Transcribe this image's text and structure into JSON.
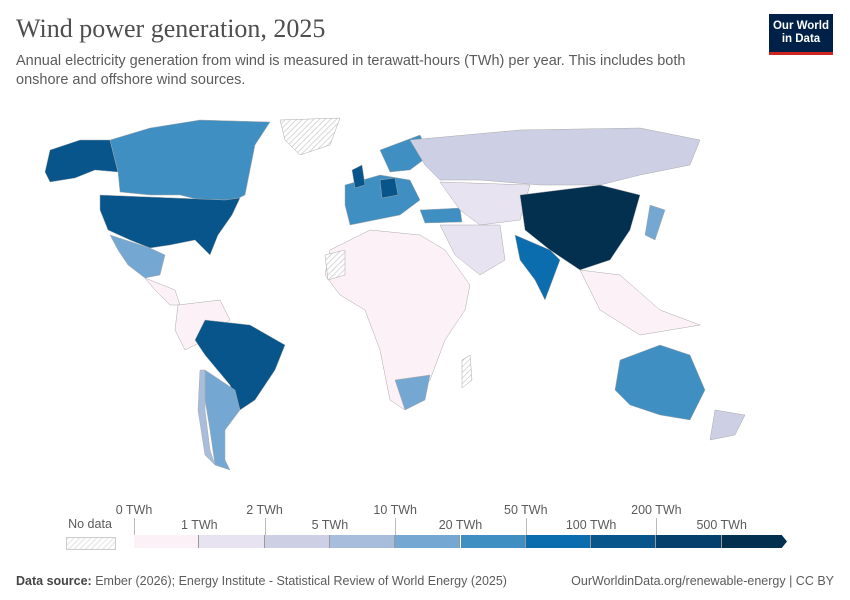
{
  "header": {
    "title": "Wind power generation, 2025",
    "subtitle": "Annual electricity generation from wind is measured in terawatt-hours (TWh) per year. This includes both onshore and offshore wind sources.",
    "logo": "Our World in Data"
  },
  "legend": {
    "no_data": "No data",
    "upper_labels": [
      "0 TWh",
      "2 TWh",
      "10 TWh",
      "50 TWh",
      "200 TWh"
    ],
    "lower_labels": [
      "1 TWh",
      "5 TWh",
      "20 TWh",
      "100 TWh",
      "500 TWh"
    ],
    "bins": [
      "#fdf1f8",
      "#e8e3f1",
      "#cdcfe4",
      "#a8bcdb",
      "#74a7d2",
      "#3f8fc2",
      "#0b6cae",
      "#07558b",
      "#053f6b",
      "#043050"
    ]
  },
  "footer": {
    "source_label": "Data source:",
    "source": "Ember (2026); Energy Institute - Statistical Review of World Energy (2025)",
    "link": "OurWorldinData.org/renewable-energy | CC BY"
  }
}
